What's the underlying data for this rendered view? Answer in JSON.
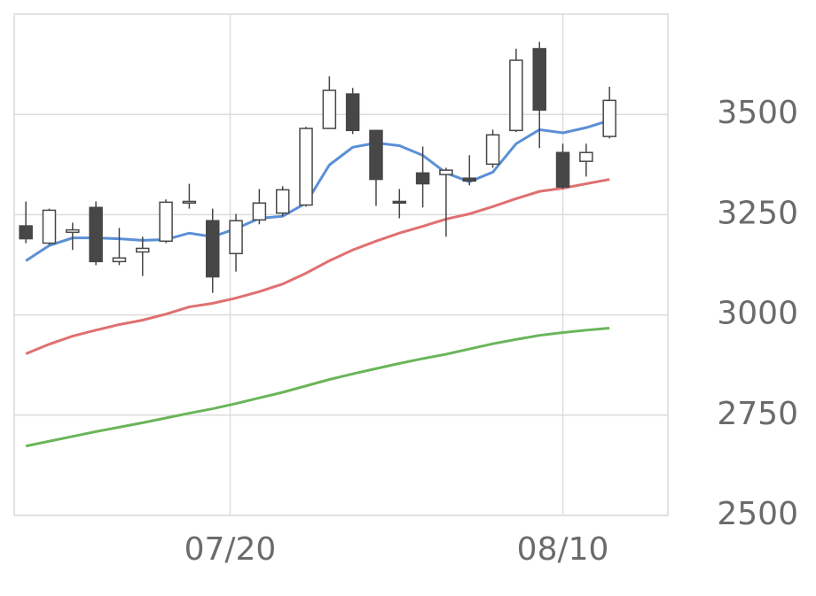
{
  "chart_data": {
    "type": "candlestick",
    "x": [
      0,
      1,
      2,
      3,
      4,
      5,
      6,
      7,
      8,
      9,
      10,
      11,
      12,
      13,
      14,
      15,
      16,
      17,
      18,
      19,
      20,
      21,
      22,
      23,
      24,
      25
    ],
    "open": [
      3222,
      3179,
      3206,
      3268,
      3133,
      3157,
      3184,
      3279,
      3235,
      3153,
      3237,
      3254,
      3274,
      3465,
      3551,
      3460,
      3283,
      3354,
      3350,
      3341,
      3376,
      3460,
      3664,
      3405,
      3383,
      3445
    ],
    "high": [
      3283,
      3265,
      3230,
      3283,
      3217,
      3195,
      3288,
      3327,
      3265,
      3252,
      3314,
      3321,
      3469,
      3595,
      3566,
      3460,
      3314,
      3420,
      3367,
      3398,
      3462,
      3664,
      3681,
      3427,
      3427,
      3569
    ],
    "low": [
      3179,
      3175,
      3162,
      3124,
      3124,
      3097,
      3179,
      3265,
      3055,
      3108,
      3226,
      3246,
      3270,
      3465,
      3451,
      3272,
      3241,
      3268,
      3195,
      3323,
      3367,
      3456,
      3416,
      3314,
      3345,
      3440
    ],
    "close": [
      3190,
      3261,
      3212,
      3133,
      3142,
      3166,
      3281,
      3283,
      3095,
      3235,
      3279,
      3312,
      3465,
      3560,
      3460,
      3338,
      3279,
      3327,
      3361,
      3334,
      3449,
      3635,
      3511,
      3319,
      3405,
      3535
    ],
    "up_color": "#ffffff",
    "down_color": "#474747",
    "series": [
      {
        "color": "#5b8fd6",
        "values": [
          3135,
          3173,
          3192,
          3192,
          3190,
          3186,
          3188,
          3204,
          3195,
          3215,
          3241,
          3246,
          3279,
          3374,
          3418,
          3429,
          3422,
          3398,
          3354,
          3332,
          3356,
          3427,
          3462,
          3454,
          3467,
          3485
        ]
      },
      {
        "color": "#e07070",
        "values": [
          2903,
          2927,
          2947,
          2962,
          2976,
          2987,
          3002,
          3020,
          3029,
          3042,
          3058,
          3077,
          3104,
          3135,
          3162,
          3184,
          3204,
          3221,
          3239,
          3252,
          3270,
          3290,
          3308,
          3316,
          3327,
          3338
        ]
      },
      {
        "color": "#6ab55a",
        "values": [
          2673,
          2685,
          2697,
          2709,
          2720,
          2731,
          2743,
          2755,
          2766,
          2779,
          2793,
          2807,
          2823,
          2839,
          2853,
          2866,
          2879,
          2891,
          2902,
          2915,
          2928,
          2939,
          2949,
          2956,
          2962,
          2967
        ]
      }
    ],
    "xlim": [
      -0.5,
      27.5
    ],
    "xticks": [
      {
        "value": 8.75,
        "label": "07/20"
      },
      {
        "value": 23,
        "label": "08/10"
      }
    ],
    "ylim": [
      2500,
      3750
    ],
    "yticks": [
      2500,
      2750,
      3000,
      3250,
      3500
    ],
    "grid": true
  }
}
